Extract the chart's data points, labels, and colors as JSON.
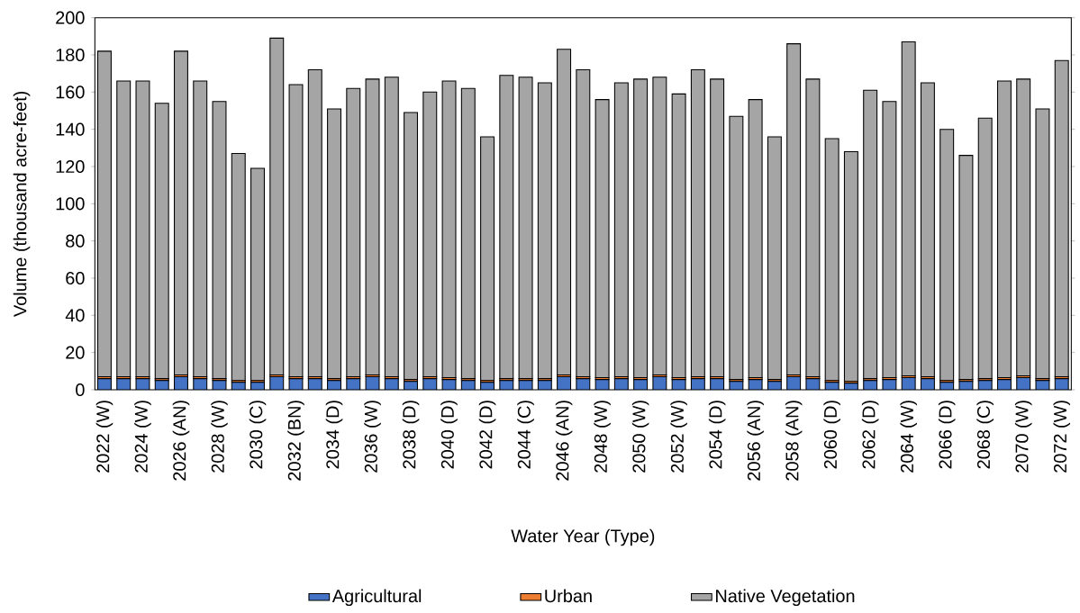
{
  "chart_data": {
    "type": "bar",
    "stacked": true,
    "xlabel": "Water Year (Type)",
    "ylabel": "Volume (thousand acre-feet)",
    "categories": [
      "2022 (W)",
      null,
      "2024 (W)",
      null,
      "2026 (AN)",
      null,
      "2028 (W)",
      null,
      "2030 (C)",
      null,
      "2032 (BN)",
      null,
      "2034 (D)",
      null,
      "2036 (W)",
      null,
      "2038 (D)",
      null,
      "2040 (D)",
      null,
      "2042 (D)",
      null,
      "2044 (C)",
      null,
      "2046 (AN)",
      null,
      "2048 (W)",
      null,
      "2050 (W)",
      null,
      "2052 (W)",
      null,
      "2054 (D)",
      null,
      "2056 (AN)",
      null,
      "2058 (AN)",
      null,
      "2060 (D)",
      null,
      "2062 (D)",
      null,
      "2064 (W)",
      null,
      "2066 (D)",
      null,
      "2068 (C)",
      null,
      "2070 (W)",
      null,
      "2072 (W)"
    ],
    "series": [
      {
        "name": "Agricultural",
        "color": "#4472c4",
        "values": [
          6,
          6,
          6,
          5,
          7,
          6,
          5,
          4,
          4,
          7,
          6,
          6,
          5,
          6,
          7,
          6,
          4.5,
          6,
          5.5,
          5,
          4,
          5,
          5,
          5,
          7,
          6,
          5.5,
          6,
          5.5,
          7,
          5.5,
          6,
          6,
          4.5,
          5.5,
          4.5,
          7,
          6,
          4,
          3.5,
          5,
          5.5,
          6.5,
          6,
          4,
          4.5,
          5,
          5.5,
          6.5,
          5,
          6
        ]
      },
      {
        "name": "Urban",
        "color": "#ed7d31",
        "values": [
          1,
          1,
          1,
          1,
          1,
          1,
          1,
          1,
          1,
          1,
          1,
          1,
          1,
          1,
          1,
          1,
          1,
          1,
          1,
          1,
          1,
          1,
          1,
          1,
          1,
          1,
          1,
          1,
          1,
          1,
          1,
          1,
          1,
          1,
          1,
          1,
          1,
          1,
          1,
          1,
          1,
          1,
          1,
          1,
          1,
          1,
          1,
          1,
          1,
          1,
          1
        ]
      },
      {
        "name": "Native Vegetation",
        "color": "#a5a5a5",
        "values": [
          175,
          159,
          159,
          148,
          174,
          159,
          149,
          122,
          114,
          181,
          157,
          165,
          145,
          155,
          159,
          161,
          143.5,
          153,
          159.5,
          156,
          131,
          163,
          162,
          159,
          175,
          165,
          149.5,
          158,
          160.5,
          160,
          152.5,
          165,
          160,
          141.5,
          149.5,
          130.5,
          178,
          160,
          130,
          123.5,
          155,
          148.5,
          179.5,
          158,
          135,
          120.5,
          140,
          159.5,
          159.5,
          145,
          170
        ]
      }
    ],
    "ylim": [
      0,
      200
    ],
    "yticks": [
      0,
      20,
      40,
      60,
      80,
      100,
      120,
      140,
      160,
      180,
      200
    ],
    "legend": "bottom"
  }
}
